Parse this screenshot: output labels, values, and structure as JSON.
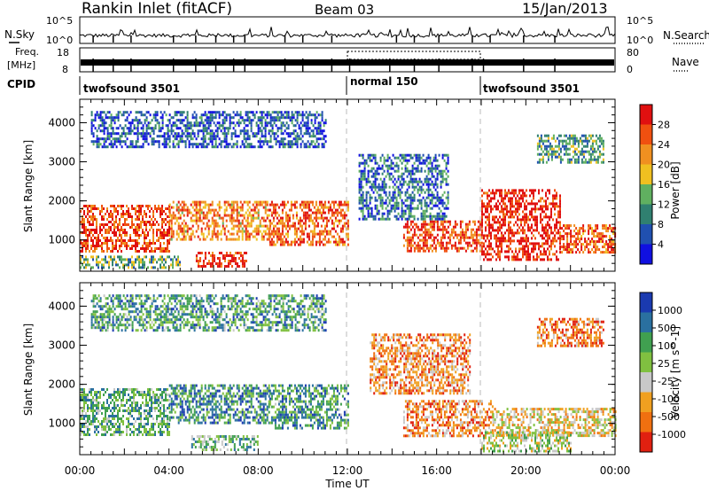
{
  "header": {
    "station": "Rankin Inlet (fitACF)",
    "beam": "Beam 03",
    "date": "15/Jan/2013"
  },
  "top_panels": {
    "nsky_label": "N.Sky",
    "nsky_ticks_left": [
      "10^5",
      "10^0"
    ],
    "nsky_ticks_right": [
      "10^5",
      "10^0"
    ],
    "nsearch_label": "N.Search",
    "freq_label_1": "Freq.",
    "freq_label_2": "[MHz]",
    "freq_ticks": [
      "18",
      "8"
    ],
    "nave_ticks": [
      "80",
      "0"
    ],
    "nave_label": "Nave",
    "cpid_label": "CPID",
    "cpid_segments": [
      {
        "label": "twofsound 3501",
        "start_hour": 0
      },
      {
        "label": "normal 150",
        "start_hour": 12
      },
      {
        "label": "twofsound 3501",
        "start_hour": 18
      }
    ]
  },
  "colors": {
    "power_scale": [
      "#1010e0",
      "#2050b0",
      "#308070",
      "#60b060",
      "#f0c020",
      "#f09020",
      "#f05010",
      "#e01010"
    ],
    "velocity_scale": [
      "#1a3ab0",
      "#2a70a0",
      "#40a050",
      "#80c040",
      "#c8c8c8",
      "#f0a020",
      "#f07010",
      "#e02010"
    ]
  },
  "chart_data": [
    {
      "type": "heatmap",
      "name": "power",
      "xlabel": "",
      "ylabel": "Slant Range [km]",
      "yticks": [
        "1000",
        "2000",
        "3000",
        "4000"
      ],
      "ylim": [
        200,
        4600
      ],
      "xlim_hours": [
        0,
        24
      ],
      "colorbar_label": "Power [dB]",
      "colorbar_ticks": [
        "4",
        "8",
        "12",
        "16",
        "20",
        "24",
        "28"
      ],
      "colorbar_range": [
        0,
        32
      ],
      "regions": [
        {
          "x0": 0.0,
          "x1": 4.0,
          "y0": 700,
          "y1": 1900,
          "level": 0.85
        },
        {
          "x0": 4.0,
          "x1": 8.5,
          "y0": 1000,
          "y1": 2000,
          "level": 0.7
        },
        {
          "x0": 5.2,
          "x1": 7.5,
          "y0": 300,
          "y1": 700,
          "level": 0.9
        },
        {
          "x0": 8.5,
          "x1": 12.0,
          "y0": 900,
          "y1": 2000,
          "level": 0.8
        },
        {
          "x0": 0.0,
          "x1": 4.5,
          "y0": 300,
          "y1": 600,
          "level": 0.4
        },
        {
          "x0": 14.5,
          "x1": 18.0,
          "y0": 700,
          "y1": 1500,
          "level": 0.85
        },
        {
          "x0": 18.0,
          "x1": 21.5,
          "y0": 500,
          "y1": 2300,
          "level": 0.95
        },
        {
          "x0": 21.5,
          "x1": 24.0,
          "y0": 700,
          "y1": 1400,
          "level": 0.8
        },
        {
          "x0": 0.5,
          "x1": 11.0,
          "y0": 3400,
          "y1": 4300,
          "level": 0.2
        },
        {
          "x0": 20.5,
          "x1": 23.5,
          "y0": 3000,
          "y1": 3700,
          "level": 0.35
        },
        {
          "x0": 12.5,
          "x1": 16.5,
          "y0": 1500,
          "y1": 3200,
          "level": 0.25
        }
      ]
    },
    {
      "type": "heatmap",
      "name": "velocity",
      "xlabel": "Time UT",
      "ylabel": "Slant Range [km]",
      "xticks": [
        "00:00",
        "04:00",
        "08:00",
        "12:00",
        "16:00",
        "20:00",
        "00:00"
      ],
      "yticks": [
        "1000",
        "2000",
        "3000",
        "4000"
      ],
      "ylim": [
        200,
        4600
      ],
      "xlim_hours": [
        0,
        24
      ],
      "colorbar_label": "Velocity [m s^-1]",
      "colorbar_ticks": [
        "1000",
        "500",
        "100",
        "25",
        "-25",
        "-100",
        "-500",
        "-1000"
      ],
      "regions": [
        {
          "x0": 0.0,
          "x1": 4.0,
          "y0": 700,
          "y1": 1900,
          "level": 0.35
        },
        {
          "x0": 4.0,
          "x1": 8.5,
          "y0": 1000,
          "y1": 2000,
          "level": 0.25
        },
        {
          "x0": 8.5,
          "x1": 12.0,
          "y0": 900,
          "y1": 2000,
          "level": 0.3
        },
        {
          "x0": 5.0,
          "x1": 8.0,
          "y0": 300,
          "y1": 700,
          "level": 0.4
        },
        {
          "x0": 14.5,
          "x1": 18.5,
          "y0": 700,
          "y1": 1600,
          "level": 0.75
        },
        {
          "x0": 18.5,
          "x1": 24.0,
          "y0": 700,
          "y1": 1400,
          "level": 0.6
        },
        {
          "x0": 18.0,
          "x1": 22.0,
          "y0": 300,
          "y1": 800,
          "level": 0.5
        },
        {
          "x0": 0.5,
          "x1": 11.0,
          "y0": 3400,
          "y1": 4300,
          "level": 0.3
        },
        {
          "x0": 20.5,
          "x1": 23.5,
          "y0": 3000,
          "y1": 3700,
          "level": 0.8
        },
        {
          "x0": 13.0,
          "x1": 17.5,
          "y0": 1800,
          "y1": 3300,
          "level": 0.75
        }
      ]
    }
  ]
}
